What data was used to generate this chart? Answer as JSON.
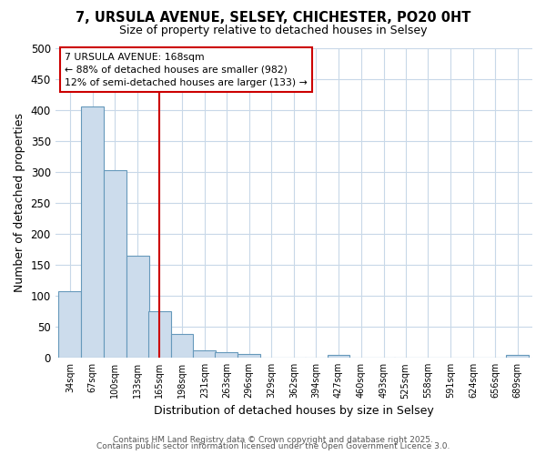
{
  "title1": "7, URSULA AVENUE, SELSEY, CHICHESTER, PO20 0HT",
  "title2": "Size of property relative to detached houses in Selsey",
  "xlabel": "Distribution of detached houses by size in Selsey",
  "ylabel": "Number of detached properties",
  "bar_centers": [
    34,
    67,
    100,
    133,
    165,
    198,
    231,
    263,
    296,
    329,
    362,
    394,
    427,
    460,
    493,
    525,
    558,
    591,
    624,
    656,
    689
  ],
  "bar_heights": [
    107,
    405,
    303,
    165,
    75,
    38,
    12,
    9,
    6,
    0,
    0,
    0,
    5,
    0,
    0,
    0,
    0,
    0,
    0,
    0,
    4
  ],
  "bar_color": "#ccdcec",
  "bar_edgecolor": "#6699bb",
  "vline_x": 165,
  "vline_color": "#cc0000",
  "annotation_title": "7 URSULA AVENUE: 168sqm",
  "annotation_line1": "← 88% of detached houses are smaller (982)",
  "annotation_line2": "12% of semi-detached houses are larger (133) →",
  "annotation_box_facecolor": "#ffffff",
  "annotation_box_edgecolor": "#cc0000",
  "ylim": [
    0,
    500
  ],
  "yticks": [
    0,
    50,
    100,
    150,
    200,
    250,
    300,
    350,
    400,
    450,
    500
  ],
  "tick_labels": [
    "34sqm",
    "67sqm",
    "100sqm",
    "133sqm",
    "165sqm",
    "198sqm",
    "231sqm",
    "263sqm",
    "296sqm",
    "329sqm",
    "362sqm",
    "394sqm",
    "427sqm",
    "460sqm",
    "493sqm",
    "525sqm",
    "558sqm",
    "591sqm",
    "624sqm",
    "656sqm",
    "689sqm"
  ],
  "background_color": "#ffffff",
  "plot_bg_color": "#ffffff",
  "grid_color": "#c8d8e8",
  "footer1": "Contains HM Land Registry data © Crown copyright and database right 2025.",
  "footer2": "Contains public sector information licensed under the Open Government Licence 3.0."
}
